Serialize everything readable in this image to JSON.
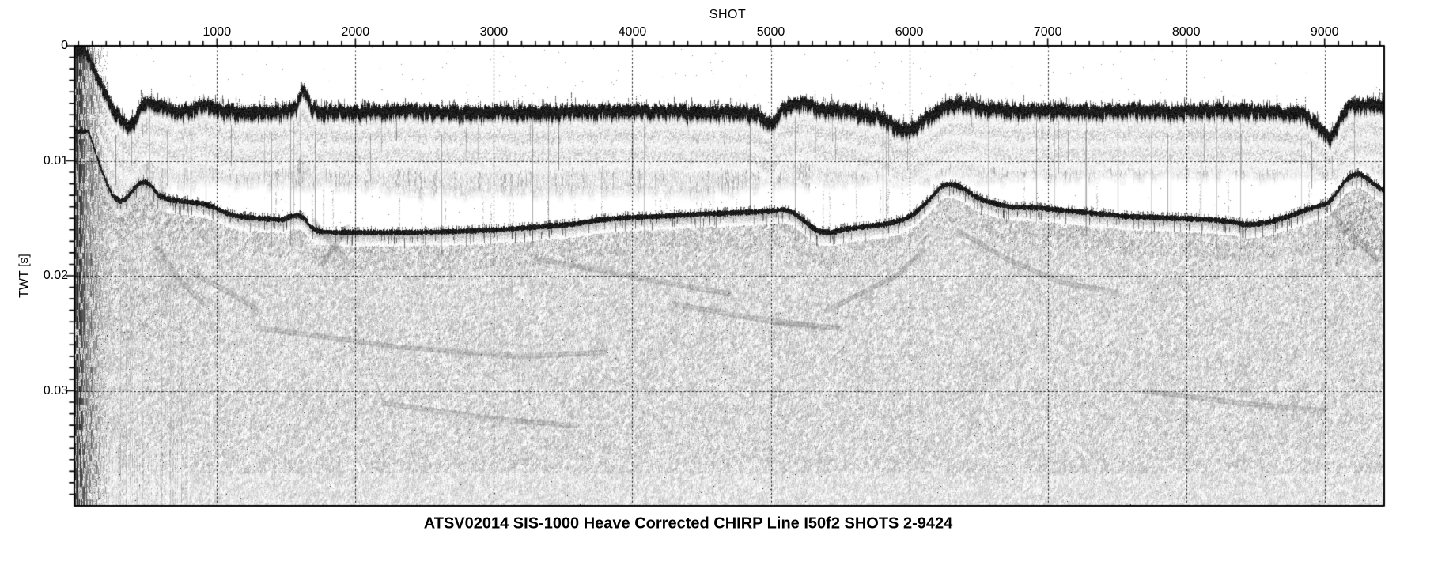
{
  "chart_data": {
    "type": "heatmap",
    "variant": "seismic-chirp-subbottom-profile",
    "title": "ATSV02014 SIS-1000 Heave Corrected CHIRP Line I50f2 SHOTS 2-9424",
    "xlabel": "SHOT",
    "ylabel": "TWT [s]",
    "xlim": [
      -30,
      9430
    ],
    "ylim_twt_s": [
      0,
      0.04
    ],
    "y_axis_positive_down": true,
    "x_major_ticks": [
      1000,
      2000,
      3000,
      4000,
      5000,
      6000,
      7000,
      8000,
      9000
    ],
    "x_tick_labels": [
      "1000",
      "2000",
      "3000",
      "4000",
      "5000",
      "6000",
      "7000",
      "8000",
      "9000"
    ],
    "x_minor_step": 100,
    "y_major_ticks": [
      0,
      0.01,
      0.02,
      0.03
    ],
    "y_tick_labels": [
      "0",
      "0.01",
      "0.02",
      "0.03"
    ],
    "y_minor_step": 0.001,
    "grid": {
      "style": "dotted",
      "on_major_ticks": true
    },
    "colors": {
      "ink": "#000000",
      "paper": "#ffffff",
      "speckle_mid": "#8a8a8a"
    },
    "annotations": {
      "shot_range_shown": [
        2,
        9424
      ],
      "start_of_line_noise_until_shot": 240,
      "description": "Grayscale CHIRP seismic section: strong near-surface arrival band (~0.005 s), stratified gray layers above 0.01 s, acoustically transparent layer, strong undulating sub-bottom reflector (~0.011-0.016 s), speckled diffuse return below."
    },
    "series": [
      {
        "name": "near-surface-arrival-top",
        "units": [
          "shot",
          "TWT_s"
        ],
        "points": [
          [
            40,
            0.0
          ],
          [
            85,
            0.0008
          ],
          [
            140,
            0.0023
          ],
          [
            200,
            0.0039
          ],
          [
            255,
            0.0052
          ],
          [
            310,
            0.006
          ],
          [
            357,
            0.0065
          ],
          [
            403,
            0.006
          ],
          [
            443,
            0.0048
          ],
          [
            483,
            0.0044
          ],
          [
            558,
            0.0046
          ],
          [
            643,
            0.005
          ],
          [
            729,
            0.0052
          ],
          [
            843,
            0.0049
          ],
          [
            918,
            0.0047
          ],
          [
            986,
            0.0048
          ],
          [
            1072,
            0.0052
          ],
          [
            1158,
            0.0053
          ],
          [
            1272,
            0.0052
          ],
          [
            1387,
            0.0054
          ],
          [
            1501,
            0.0052
          ],
          [
            1570,
            0.0048
          ],
          [
            1604,
            0.0037
          ],
          [
            1627,
            0.0033
          ],
          [
            1650,
            0.0039
          ],
          [
            1684,
            0.0049
          ],
          [
            1758,
            0.0053
          ],
          [
            1901,
            0.0052
          ],
          [
            2416,
            0.0052
          ],
          [
            2988,
            0.0053
          ],
          [
            3560,
            0.0052
          ],
          [
            4132,
            0.0052
          ],
          [
            4590,
            0.0053
          ],
          [
            4761,
            0.0052
          ],
          [
            4876,
            0.0054
          ],
          [
            4933,
            0.0058
          ],
          [
            4973,
            0.0063
          ],
          [
            5019,
            0.0061
          ],
          [
            5076,
            0.0052
          ],
          [
            5133,
            0.0047
          ],
          [
            5190,
            0.0045
          ],
          [
            5248,
            0.0046
          ],
          [
            5333,
            0.005
          ],
          [
            5505,
            0.0052
          ],
          [
            5677,
            0.0054
          ],
          [
            5791,
            0.0057
          ],
          [
            5877,
            0.0063
          ],
          [
            5934,
            0.0068
          ],
          [
            5991,
            0.0069
          ],
          [
            6048,
            0.0065
          ],
          [
            6134,
            0.0056
          ],
          [
            6220,
            0.005
          ],
          [
            6306,
            0.0047
          ],
          [
            6392,
            0.0046
          ],
          [
            6477,
            0.0047
          ],
          [
            6592,
            0.005
          ],
          [
            6763,
            0.0052
          ],
          [
            7049,
            0.0051
          ],
          [
            7335,
            0.0052
          ],
          [
            7621,
            0.0051
          ],
          [
            7907,
            0.0052
          ],
          [
            8193,
            0.0051
          ],
          [
            8479,
            0.0052
          ],
          [
            8708,
            0.0053
          ],
          [
            8851,
            0.0055
          ],
          [
            8937,
            0.0063
          ],
          [
            8994,
            0.0071
          ],
          [
            9040,
            0.0074
          ],
          [
            9080,
            0.0067
          ],
          [
            9120,
            0.0056
          ],
          [
            9166,
            0.0049
          ],
          [
            9223,
            0.0047
          ],
          [
            9337,
            0.0046
          ],
          [
            9452,
            0.0047
          ]
        ]
      },
      {
        "name": "main-subbottom-reflector",
        "units": [
          "shot",
          "TWT_s"
        ],
        "points": [
          [
            71,
            0.0074
          ],
          [
            106,
            0.0087
          ],
          [
            152,
            0.0104
          ],
          [
            197,
            0.0118
          ],
          [
            243,
            0.013
          ],
          [
            300,
            0.0135
          ],
          [
            346,
            0.0132
          ],
          [
            392,
            0.0125
          ],
          [
            437,
            0.0119
          ],
          [
            483,
            0.0118
          ],
          [
            529,
            0.0122
          ],
          [
            575,
            0.013
          ],
          [
            643,
            0.0133
          ],
          [
            758,
            0.0135
          ],
          [
            901,
            0.0137
          ],
          [
            975,
            0.014
          ],
          [
            1044,
            0.0144
          ],
          [
            1112,
            0.0147
          ],
          [
            1215,
            0.0149
          ],
          [
            1358,
            0.015
          ],
          [
            1472,
            0.0151
          ],
          [
            1530,
            0.0148
          ],
          [
            1587,
            0.0147
          ],
          [
            1632,
            0.015
          ],
          [
            1672,
            0.0157
          ],
          [
            1730,
            0.0161
          ],
          [
            1844,
            0.0162
          ],
          [
            2416,
            0.0162
          ],
          [
            2759,
            0.0161
          ],
          [
            3102,
            0.0159
          ],
          [
            3331,
            0.0157
          ],
          [
            3560,
            0.0155
          ],
          [
            3760,
            0.0151
          ],
          [
            3960,
            0.0149
          ],
          [
            4189,
            0.0148
          ],
          [
            4475,
            0.0146
          ],
          [
            4704,
            0.0145
          ],
          [
            4904,
            0.0144
          ],
          [
            5019,
            0.0143
          ],
          [
            5093,
            0.0142
          ],
          [
            5162,
            0.0145
          ],
          [
            5230,
            0.0151
          ],
          [
            5288,
            0.0157
          ],
          [
            5345,
            0.0161
          ],
          [
            5436,
            0.0162
          ],
          [
            5533,
            0.0159
          ],
          [
            5677,
            0.0157
          ],
          [
            5820,
            0.0155
          ],
          [
            5951,
            0.0151
          ],
          [
            6031,
            0.0146
          ],
          [
            6094,
            0.0139
          ],
          [
            6146,
            0.0133
          ],
          [
            6191,
            0.0127
          ],
          [
            6231,
            0.0122
          ],
          [
            6277,
            0.012
          ],
          [
            6334,
            0.0121
          ],
          [
            6392,
            0.0124
          ],
          [
            6466,
            0.013
          ],
          [
            6535,
            0.0134
          ],
          [
            6621,
            0.0137
          ],
          [
            6735,
            0.014
          ],
          [
            6878,
            0.014
          ],
          [
            7049,
            0.0142
          ],
          [
            7221,
            0.0144
          ],
          [
            7392,
            0.0146
          ],
          [
            7564,
            0.0148
          ],
          [
            7793,
            0.0149
          ],
          [
            8021,
            0.015
          ],
          [
            8193,
            0.0151
          ],
          [
            8336,
            0.0153
          ],
          [
            8410,
            0.0155
          ],
          [
            8479,
            0.0155
          ],
          [
            8593,
            0.0153
          ],
          [
            8736,
            0.0148
          ],
          [
            8868,
            0.0142
          ],
          [
            8954,
            0.0139
          ],
          [
            9011,
            0.0137
          ],
          [
            9057,
            0.0132
          ],
          [
            9108,
            0.0123
          ],
          [
            9154,
            0.0116
          ],
          [
            9200,
            0.0112
          ],
          [
            9252,
            0.0111
          ],
          [
            9303,
            0.0115
          ],
          [
            9355,
            0.012
          ],
          [
            9406,
            0.0124
          ],
          [
            9452,
            0.0128
          ]
        ]
      }
    ],
    "subsurface_features": [
      {
        "points": [
          [
            1700,
            0.0153
          ],
          [
            1850,
            0.0175
          ],
          [
            1960,
            0.019
          ]
        ]
      },
      {
        "points": [
          [
            1760,
            0.019
          ],
          [
            1950,
            0.0157
          ]
        ]
      },
      {
        "points": [
          [
            800,
            0.0195
          ],
          [
            1100,
            0.0215
          ],
          [
            1300,
            0.023
          ]
        ]
      },
      {
        "points": [
          [
            1300,
            0.0245
          ],
          [
            2300,
            0.0262
          ],
          [
            3200,
            0.027
          ],
          [
            3800,
            0.0266
          ]
        ]
      },
      {
        "points": [
          [
            3300,
            0.0185
          ],
          [
            4200,
            0.0205
          ],
          [
            4700,
            0.0215
          ]
        ]
      },
      {
        "points": [
          [
            5050,
            0.024
          ],
          [
            5500,
            0.0245
          ]
        ]
      },
      {
        "points": [
          [
            5400,
            0.023
          ],
          [
            5900,
            0.02
          ],
          [
            6100,
            0.0178
          ]
        ]
      },
      {
        "points": [
          [
            6350,
            0.016
          ],
          [
            6700,
            0.0185
          ],
          [
            7100,
            0.0205
          ],
          [
            7500,
            0.0215
          ]
        ]
      },
      {
        "points": [
          [
            7700,
            0.03
          ],
          [
            8400,
            0.031
          ],
          [
            9000,
            0.0318
          ]
        ]
      },
      {
        "points": [
          [
            2200,
            0.031
          ],
          [
            3000,
            0.0325
          ],
          [
            3600,
            0.033
          ]
        ]
      },
      {
        "points": [
          [
            4300,
            0.0225
          ],
          [
            4800,
            0.0235
          ],
          [
            5300,
            0.0245
          ]
        ]
      },
      {
        "points": [
          [
            9050,
            0.0145
          ],
          [
            9200,
            0.0165
          ],
          [
            9380,
            0.0185
          ]
        ]
      },
      {
        "points": [
          [
            560,
            0.0175
          ],
          [
            750,
            0.0205
          ],
          [
            900,
            0.0225
          ]
        ]
      }
    ]
  }
}
